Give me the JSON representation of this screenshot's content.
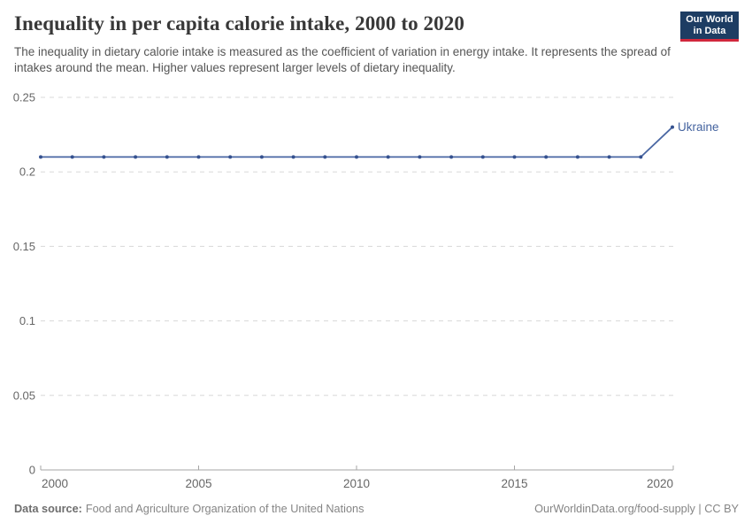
{
  "header": {
    "title": "Inequality in per capita calorie intake, 2000 to 2020",
    "subtitle": "The inequality in dietary calorie intake is measured as the coefficient of variation in energy intake. It represents the spread of intakes around the mean. Higher values represent larger levels of dietary inequality.",
    "logo": {
      "line1": "Our World",
      "line2": "in Data"
    }
  },
  "chart_data": {
    "type": "line",
    "title": "Inequality in per capita calorie intake, 2000 to 2020",
    "x": [
      2000,
      2001,
      2002,
      2003,
      2004,
      2005,
      2006,
      2007,
      2008,
      2009,
      2010,
      2011,
      2012,
      2013,
      2014,
      2015,
      2016,
      2017,
      2018,
      2019,
      2020
    ],
    "series": [
      {
        "name": "Ukraine",
        "values": [
          0.21,
          0.21,
          0.21,
          0.21,
          0.21,
          0.21,
          0.21,
          0.21,
          0.21,
          0.21,
          0.21,
          0.21,
          0.21,
          0.21,
          0.21,
          0.21,
          0.21,
          0.21,
          0.21,
          0.21,
          0.23
        ]
      }
    ],
    "xlabel": "",
    "ylabel": "",
    "ylim": [
      0,
      0.25
    ],
    "xlim": [
      2000,
      2020
    ],
    "yticks": [
      0,
      0.05,
      0.1,
      0.15,
      0.2,
      0.25
    ],
    "ytick_labels": [
      "0",
      "0.05",
      "0.1",
      "0.15",
      "0.2",
      "0.25"
    ],
    "xticks": [
      2000,
      2005,
      2010,
      2015,
      2020
    ],
    "xtick_labels": [
      "2000",
      "2005",
      "2010",
      "2015",
      "2020"
    ],
    "grid": "horizontal-dashed",
    "legend": "inline-label-at-line-end",
    "marker": "dot-every-year"
  },
  "colors": {
    "line": "#4a67a3",
    "point": "#35518f",
    "series_label": "#44639f",
    "gridline": "#d8d8d8",
    "axis": "#a5a5a5",
    "tick_label": "#666666",
    "logo_bg": "#1d3d63",
    "logo_red": "#d1273c"
  },
  "footer": {
    "datasource_label": "Data source:",
    "datasource": "Food and Agriculture Organization of the United Nations",
    "link": "OurWorldinData.org/food-supply | CC BY"
  }
}
